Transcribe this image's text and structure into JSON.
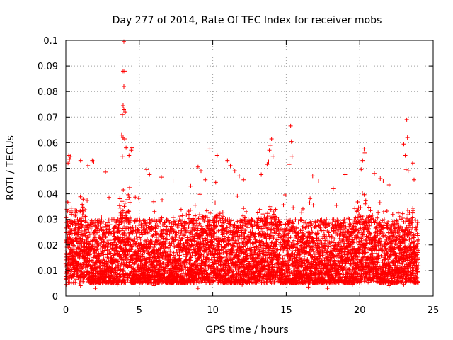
{
  "chart_data": {
    "type": "scatter",
    "title": "Day 277 of 2014, Rate Of TEC Index for receiver mobs",
    "xlabel": "GPS time / hours",
    "ylabel": "ROTI / TECUs",
    "xlim": [
      0,
      25
    ],
    "ylim": [
      0,
      0.1
    ],
    "x_ticks": [
      0,
      5,
      10,
      15,
      20,
      25
    ],
    "y_ticks": [
      0,
      0.01,
      0.02,
      0.03,
      0.04,
      0.05,
      0.06,
      0.07,
      0.08,
      0.09,
      0.1
    ],
    "grid": true,
    "marker": "+",
    "series_color": "#ff0000",
    "x_data_range": [
      0,
      24
    ],
    "typical_band": [
      0.005,
      0.03
    ],
    "points": [
      [
        3.95,
        0.0995
      ],
      [
        3.9,
        0.088
      ],
      [
        4.0,
        0.088
      ],
      [
        3.95,
        0.082
      ],
      [
        3.9,
        0.0745
      ],
      [
        3.95,
        0.073
      ],
      [
        3.85,
        0.071
      ],
      [
        4.05,
        0.072
      ],
      [
        3.8,
        0.063
      ],
      [
        3.9,
        0.062
      ],
      [
        4.0,
        0.0615
      ],
      [
        4.1,
        0.058
      ],
      [
        4.5,
        0.058
      ],
      [
        4.45,
        0.057
      ],
      [
        4.3,
        0.055
      ],
      [
        3.85,
        0.0545
      ],
      [
        0.2,
        0.055
      ],
      [
        0.3,
        0.0545
      ],
      [
        0.25,
        0.0535
      ],
      [
        0.15,
        0.052
      ],
      [
        1.0,
        0.053
      ],
      [
        1.5,
        0.051
      ],
      [
        1.8,
        0.053
      ],
      [
        1.9,
        0.0525
      ],
      [
        2.7,
        0.0485
      ],
      [
        5.5,
        0.0495
      ],
      [
        5.7,
        0.0475
      ],
      [
        6.5,
        0.0465
      ],
      [
        7.3,
        0.045
      ],
      [
        8.5,
        0.043
      ],
      [
        9.0,
        0.0505
      ],
      [
        9.2,
        0.049
      ],
      [
        9.8,
        0.0575
      ],
      [
        9.5,
        0.0455
      ],
      [
        10.2,
        0.0445
      ],
      [
        10.3,
        0.055
      ],
      [
        11.0,
        0.053
      ],
      [
        11.2,
        0.051
      ],
      [
        11.5,
        0.049
      ],
      [
        11.8,
        0.047
      ],
      [
        12.1,
        0.0455
      ],
      [
        13.3,
        0.0475
      ],
      [
        13.7,
        0.0515
      ],
      [
        13.8,
        0.0525
      ],
      [
        13.9,
        0.059
      ],
      [
        14.0,
        0.0615
      ],
      [
        13.85,
        0.057
      ],
      [
        14.1,
        0.0545
      ],
      [
        15.3,
        0.0665
      ],
      [
        15.35,
        0.0605
      ],
      [
        15.4,
        0.0545
      ],
      [
        15.2,
        0.0515
      ],
      [
        16.8,
        0.047
      ],
      [
        17.2,
        0.045
      ],
      [
        18.2,
        0.042
      ],
      [
        19.0,
        0.0475
      ],
      [
        20.1,
        0.0495
      ],
      [
        20.3,
        0.0575
      ],
      [
        20.35,
        0.056
      ],
      [
        20.2,
        0.053
      ],
      [
        21.0,
        0.048
      ],
      [
        21.4,
        0.046
      ],
      [
        21.6,
        0.045
      ],
      [
        22.0,
        0.0435
      ],
      [
        23.0,
        0.0595
      ],
      [
        23.2,
        0.069
      ],
      [
        23.25,
        0.062
      ],
      [
        23.1,
        0.055
      ],
      [
        23.15,
        0.0495
      ],
      [
        23.3,
        0.049
      ],
      [
        23.6,
        0.052
      ],
      [
        23.7,
        0.0455
      ],
      [
        0.05,
        0.0045
      ],
      [
        1.0,
        0.004
      ],
      [
        2.0,
        0.003
      ],
      [
        3.5,
        0.0045
      ],
      [
        6.0,
        0.004
      ],
      [
        9.0,
        0.003
      ],
      [
        12.0,
        0.0045
      ],
      [
        14.0,
        0.005
      ],
      [
        16.5,
        0.0035
      ],
      [
        17.8,
        0.003
      ],
      [
        19.5,
        0.0045
      ],
      [
        22.0,
        0.004
      ],
      [
        23.0,
        0.0045
      ],
      [
        23.8,
        0.005
      ]
    ]
  }
}
